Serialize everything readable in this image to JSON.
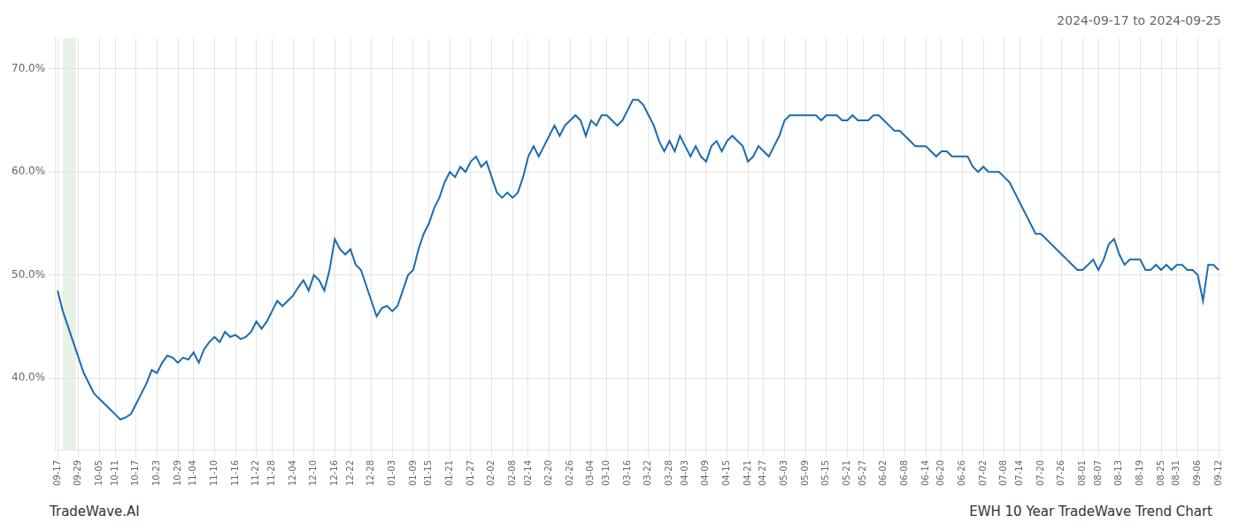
{
  "chart_data": {
    "type": "line",
    "title": "2024-09-17 to 2024-09-25",
    "annotations": [
      "TradeWave.AI",
      "EWH 10 Year TradeWave Trend Chart"
    ],
    "color": "#1b6cb0",
    "grid": true,
    "highlight": {
      "x": [
        1.0,
        3.5
      ],
      "color": "#d6ead6"
    },
    "ylim": [
      33,
      73
    ],
    "yticks": [
      {
        "value": 40.0,
        "label": "40.0%"
      },
      {
        "value": 50.0,
        "label": "50.0%"
      },
      {
        "value": 60.0,
        "label": "60.0%"
      },
      {
        "value": 70.0,
        "label": "70.0%"
      }
    ],
    "categories": [
      "09-17",
      null,
      null,
      null,
      "09-29",
      null,
      null,
      null,
      "10-05",
      null,
      null,
      "10-11",
      null,
      null,
      null,
      "10-17",
      null,
      null,
      null,
      "10-23",
      null,
      null,
      null,
      "10-29",
      null,
      null,
      "11-04",
      null,
      null,
      null,
      "11-10",
      null,
      null,
      null,
      "11-16",
      null,
      null,
      null,
      "11-22",
      null,
      null,
      "11-28",
      null,
      null,
      null,
      "12-04",
      null,
      null,
      null,
      "12-10",
      null,
      null,
      null,
      "12-16",
      null,
      null,
      "12-22",
      null,
      null,
      null,
      "12-28",
      null,
      null,
      null,
      "01-03",
      null,
      null,
      null,
      "01-09",
      null,
      null,
      "01-15",
      null,
      null,
      null,
      "01-21",
      null,
      null,
      null,
      "01-27",
      null,
      null,
      null,
      "02-02",
      null,
      null,
      null,
      "02-08",
      null,
      null,
      "02-14",
      null,
      null,
      null,
      "02-20",
      null,
      null,
      null,
      "02-26",
      null,
      null,
      null,
      "03-04",
      null,
      null,
      "03-10",
      null,
      null,
      null,
      "03-16",
      null,
      null,
      null,
      "03-22",
      null,
      null,
      null,
      "03-28",
      null,
      null,
      "04-03",
      null,
      null,
      null,
      "04-09",
      null,
      null,
      null,
      "04-15",
      null,
      null,
      null,
      "04-21",
      null,
      null,
      "04-27",
      null,
      null,
      null,
      "05-03",
      null,
      null,
      null,
      "05-09",
      null,
      null,
      null,
      "05-15",
      null,
      null,
      null,
      "05-21",
      null,
      null,
      "05-27",
      null,
      null,
      null,
      "06-02",
      null,
      null,
      null,
      "06-08",
      null,
      null,
      null,
      "06-14",
      null,
      null,
      "06-20",
      null,
      null,
      null,
      "06-26",
      null,
      null,
      null,
      "07-02",
      null,
      null,
      null,
      "07-08",
      null,
      null,
      "07-14",
      null,
      null,
      null,
      "07-20",
      null,
      null,
      null,
      "07-26",
      null,
      null,
      null,
      "08-01",
      null,
      null,
      "08-07",
      null,
      null,
      null,
      "08-13",
      null,
      null,
      null,
      "08-19",
      null,
      null,
      null,
      "08-25",
      null,
      null,
      "08-31",
      null,
      null,
      null,
      "09-06",
      null,
      null,
      null,
      "09-12"
    ],
    "values": [
      48.5,
      46.5,
      45.0,
      43.5,
      42.0,
      40.5,
      39.5,
      38.5,
      38.0,
      37.5,
      37.0,
      36.5,
      36.0,
      36.2,
      36.5,
      37.5,
      38.5,
      39.5,
      40.8,
      40.5,
      41.5,
      42.2,
      42.0,
      41.5,
      42.0,
      41.8,
      42.5,
      41.5,
      42.8,
      43.5,
      44.0,
      43.5,
      44.5,
      44.0,
      44.2,
      43.8,
      44.0,
      44.5,
      45.5,
      44.8,
      45.5,
      46.5,
      47.5,
      47.0,
      47.5,
      48.0,
      48.8,
      49.5,
      48.5,
      50.0,
      49.5,
      48.5,
      50.5,
      53.5,
      52.5,
      52.0,
      52.5,
      51.0,
      50.5,
      49.0,
      47.5,
      46.0,
      46.8,
      47.0,
      46.5,
      47.0,
      48.5,
      50.0,
      50.5,
      52.5,
      54.0,
      55.0,
      56.5,
      57.5,
      59.0,
      60.0,
      59.5,
      60.5,
      60.0,
      61.0,
      61.5,
      60.5,
      61.0,
      59.5,
      58.0,
      57.5,
      58.0,
      57.5,
      58.0,
      59.5,
      61.5,
      62.5,
      61.5,
      62.5,
      63.5,
      64.5,
      63.5,
      64.5,
      65.0,
      65.5,
      65.0,
      63.5,
      65.0,
      64.5,
      65.5,
      65.5,
      65.0,
      64.5,
      65.0,
      66.0,
      67.0,
      67.0,
      66.5,
      65.5,
      64.5,
      63.0,
      62.0,
      63.0,
      62.0,
      63.5,
      62.5,
      61.5,
      62.5,
      61.5,
      61.0,
      62.5,
      63.0,
      62.0,
      63.0,
      63.5,
      63.0,
      62.5,
      61.0,
      61.5,
      62.5,
      62.0,
      61.5,
      62.5,
      63.5,
      65.0,
      65.5,
      65.5,
      65.5,
      65.5,
      65.5,
      65.5,
      65.0,
      65.5,
      65.5,
      65.5,
      65.0,
      65.0,
      65.5,
      65.0,
      65.0,
      65.0,
      65.5,
      65.5,
      65.0,
      64.5,
      64.0,
      64.0,
      63.5,
      63.0,
      62.5,
      62.5,
      62.5,
      62.0,
      61.5,
      62.0,
      62.0,
      61.5,
      61.5,
      61.5,
      61.5,
      60.5,
      60.0,
      60.5,
      60.0,
      60.0,
      60.0,
      59.5,
      59.0,
      58.0,
      57.0,
      56.0,
      55.0,
      54.0,
      54.0,
      53.5,
      53.0,
      52.5,
      52.0,
      51.5,
      51.0,
      50.5,
      50.5,
      51.0,
      51.5,
      50.5,
      51.5,
      53.0,
      53.5,
      52.0,
      51.0,
      51.5,
      51.5,
      51.5,
      50.5,
      50.5,
      51.0,
      50.5,
      51.0,
      50.5,
      51.0,
      51.0,
      50.5,
      50.5,
      50.0,
      47.5,
      51.0,
      51.0,
      50.5
    ]
  }
}
